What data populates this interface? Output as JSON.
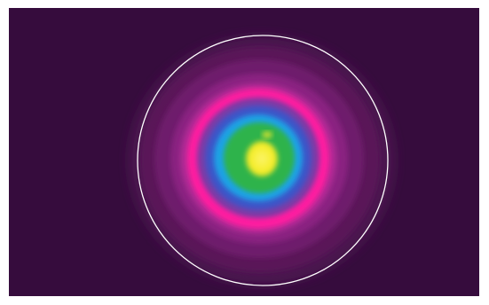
{
  "viewer": {
    "background_color": "#360c3d",
    "aperture_color": "#ffffff",
    "colormap": [
      "#f6ee2a",
      "#2fb34c",
      "#1fa3e6",
      "#3c55c8",
      "#7b3aa6",
      "#ff1fa0",
      "#b0268c",
      "#7d1d75",
      "#571556"
    ]
  }
}
